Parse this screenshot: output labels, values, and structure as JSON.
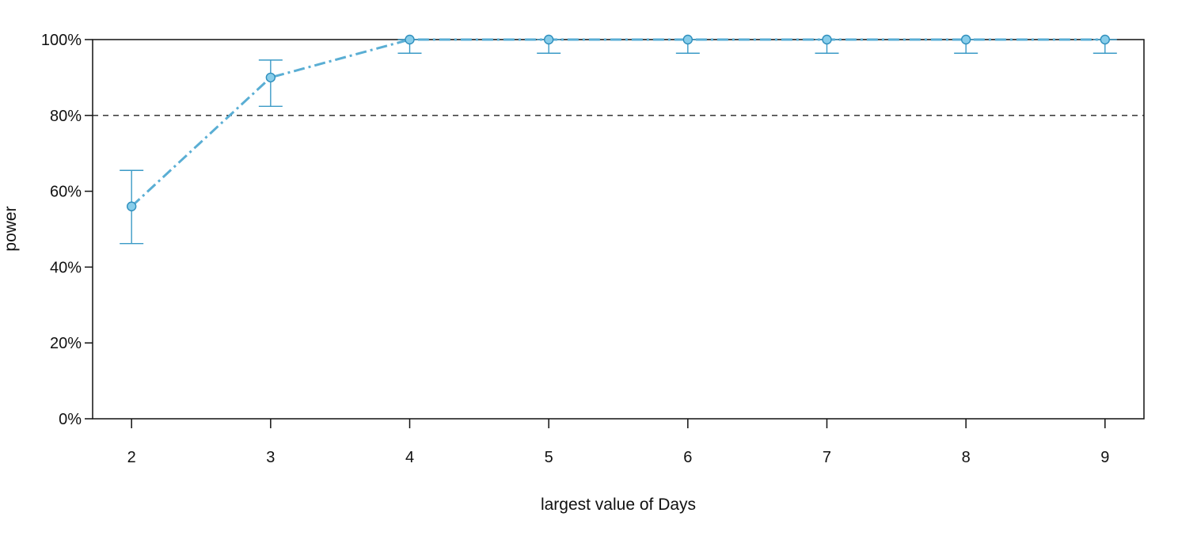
{
  "chart_data": {
    "type": "line",
    "title": "",
    "xlabel": "largest value of Days",
    "ylabel": "power",
    "x": [
      2,
      3,
      4,
      5,
      6,
      7,
      8,
      9
    ],
    "series": [
      {
        "values": [
          56,
          90,
          100,
          100,
          100,
          100,
          100,
          100
        ],
        "ci_lower": [
          46.2,
          82.4,
          96.4,
          96.4,
          96.4,
          96.4,
          96.4,
          96.4
        ],
        "ci_upper": [
          65.5,
          94.6,
          100,
          100,
          100,
          100,
          100,
          100
        ]
      }
    ],
    "xlim": [
      1.72,
      9.28
    ],
    "ylim": [
      0,
      100
    ],
    "x_ticks": [
      "2",
      "3",
      "4",
      "5",
      "6",
      "7",
      "8",
      "9"
    ],
    "y_ticks": [
      "0%",
      "20%",
      "40%",
      "60%",
      "80%",
      "100%"
    ],
    "y_tick_values": [
      0,
      20,
      40,
      60,
      80,
      100
    ],
    "reference_line": 80,
    "grid": false,
    "colors": {
      "line": "#5aaed4",
      "errorbar": "#3a9ac6",
      "point_fill": "#87cdea",
      "point_stroke": "#2f8fbd",
      "reference": "#222222",
      "axis": "#111111"
    }
  }
}
